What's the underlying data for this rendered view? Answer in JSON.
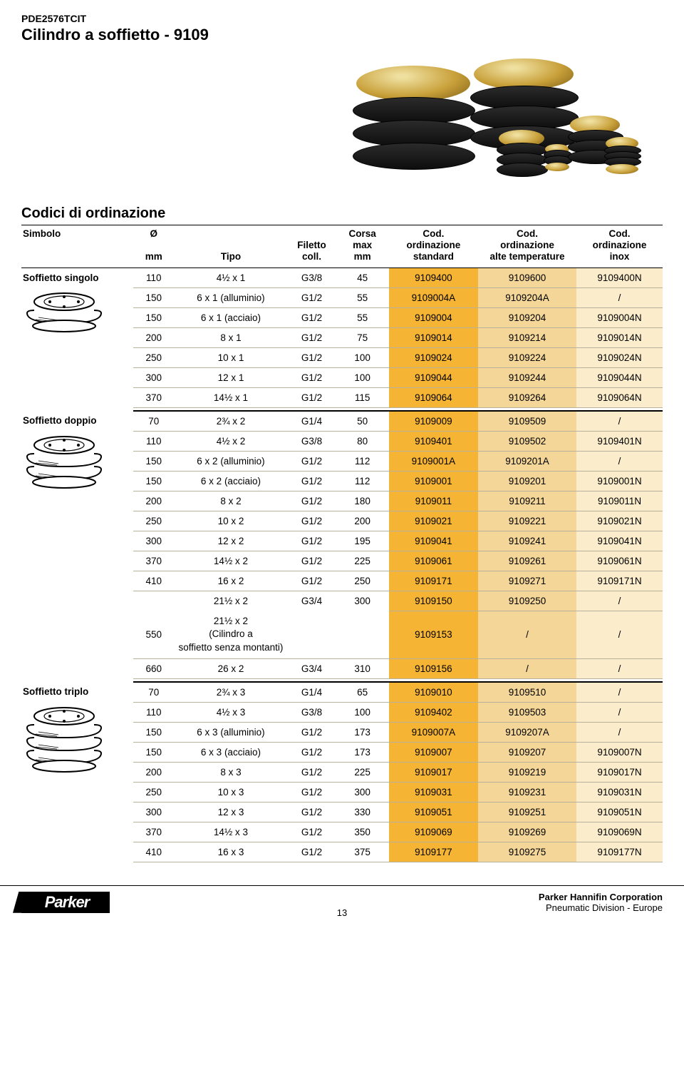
{
  "meta": {
    "doc_code": "PDE2576TCIT",
    "doc_title": "Cilindro a soffietto - 9109",
    "section_title": "Codici di ordinazione",
    "page_number": "13"
  },
  "headers": {
    "simbolo": "Simbolo",
    "diametro": "Ø",
    "diametro_unit": "mm",
    "tipo": "Tipo",
    "filetto": "Filetto",
    "filetto_sub": "coll.",
    "corsa": "Corsa",
    "corsa_sub": "max",
    "corsa_unit": "mm",
    "cod1": "Cod.",
    "cod1_sub": "ordinazione",
    "cod1_sub2": "standard",
    "cod2": "Cod.",
    "cod2_sub": "ordinazione",
    "cod2_sub2": "alte temperature",
    "cod3": "Cod.",
    "cod3_sub": "ordinazione",
    "cod3_sub2": "inox"
  },
  "groups": [
    {
      "name": "Soffietto singolo",
      "rows": [
        {
          "dia": "110",
          "tipo": "4½ x 1",
          "fil": "G3/8",
          "corsa": "45",
          "c1": "9109400",
          "c2": "9109600",
          "c3": "9109400N"
        },
        {
          "dia": "150",
          "tipo": "6 x 1 (alluminio)",
          "fil": "G1/2",
          "corsa": "55",
          "c1": "9109004A",
          "c2": "9109204A",
          "c3": "/"
        },
        {
          "dia": "150",
          "tipo": "6 x 1 (acciaio)",
          "fil": "G1/2",
          "corsa": "55",
          "c1": "9109004",
          "c2": "9109204",
          "c3": "9109004N"
        },
        {
          "dia": "200",
          "tipo": "8 x 1",
          "fil": "G1/2",
          "corsa": "75",
          "c1": "9109014",
          "c2": "9109214",
          "c3": "9109014N"
        },
        {
          "dia": "250",
          "tipo": "10 x 1",
          "fil": "G1/2",
          "corsa": "100",
          "c1": "9109024",
          "c2": "9109224",
          "c3": "9109024N"
        },
        {
          "dia": "300",
          "tipo": "12 x 1",
          "fil": "G1/2",
          "corsa": "100",
          "c1": "9109044",
          "c2": "9109244",
          "c3": "9109044N"
        },
        {
          "dia": "370",
          "tipo": "14½ x 1",
          "fil": "G1/2",
          "corsa": "115",
          "c1": "9109064",
          "c2": "9109264",
          "c3": "9109064N"
        }
      ]
    },
    {
      "name": "Soffietto doppio",
      "rows": [
        {
          "dia": "70",
          "tipo": "2¾ x 2",
          "fil": "G1/4",
          "corsa": "50",
          "c1": "9109009",
          "c2": "9109509",
          "c3": "/"
        },
        {
          "dia": "110",
          "tipo": "4½ x 2",
          "fil": "G3/8",
          "corsa": "80",
          "c1": "9109401",
          "c2": "9109502",
          "c3": "9109401N"
        },
        {
          "dia": "150",
          "tipo": "6 x 2 (alluminio)",
          "fil": "G1/2",
          "corsa": "112",
          "c1": "9109001A",
          "c2": "9109201A",
          "c3": "/"
        },
        {
          "dia": "150",
          "tipo": "6 x 2 (acciaio)",
          "fil": "G1/2",
          "corsa": "112",
          "c1": "9109001",
          "c2": "9109201",
          "c3": "9109001N"
        },
        {
          "dia": "200",
          "tipo": "8 x 2",
          "fil": "G1/2",
          "corsa": "180",
          "c1": "9109011",
          "c2": "9109211",
          "c3": "9109011N"
        },
        {
          "dia": "250",
          "tipo": "10 x 2",
          "fil": "G1/2",
          "corsa": "200",
          "c1": "9109021",
          "c2": "9109221",
          "c3": "9109021N"
        },
        {
          "dia": "300",
          "tipo": "12 x 2",
          "fil": "G1/2",
          "corsa": "195",
          "c1": "9109041",
          "c2": "9109241",
          "c3": "9109041N"
        },
        {
          "dia": "370",
          "tipo": "14½ x 2",
          "fil": "G1/2",
          "corsa": "225",
          "c1": "9109061",
          "c2": "9109261",
          "c3": "9109061N"
        },
        {
          "dia": "410",
          "tipo": "16 x 2",
          "fil": "G1/2",
          "corsa": "250",
          "c1": "9109171",
          "c2": "9109271",
          "c3": "9109171N"
        },
        {
          "dia": "",
          "tipo": "21½ x 2",
          "fil": "G3/4",
          "corsa": "300",
          "c1": "9109150",
          "c2": "9109250",
          "c3": "/",
          "tall": true
        },
        {
          "dia": "550",
          "tipo": "21½ x 2\n(Cilindro a\nsoffietto senza montanti)",
          "fil": "",
          "corsa": "",
          "c1": "9109153",
          "c2": "/",
          "c3": "/",
          "tall": true,
          "merge_up": true
        },
        {
          "dia": "660",
          "tipo": "26 x 2",
          "fil": "G3/4",
          "corsa": "310",
          "c1": "9109156",
          "c2": "/",
          "c3": "/"
        }
      ]
    },
    {
      "name": "Soffietto triplo",
      "rows": [
        {
          "dia": "70",
          "tipo": "2¾ x 3",
          "fil": "G1/4",
          "corsa": "65",
          "c1": "9109010",
          "c2": "9109510",
          "c3": "/"
        },
        {
          "dia": "110",
          "tipo": "4½ x 3",
          "fil": "G3/8",
          "corsa": "100",
          "c1": "9109402",
          "c2": "9109503",
          "c3": "/"
        },
        {
          "dia": "150",
          "tipo": "6 x 3 (alluminio)",
          "fil": "G1/2",
          "corsa": "173",
          "c1": "9109007A",
          "c2": "9109207A",
          "c3": "/"
        },
        {
          "dia": "150",
          "tipo": "6 x 3 (acciaio)",
          "fil": "G1/2",
          "corsa": "173",
          "c1": "9109007",
          "c2": "9109207",
          "c3": "9109007N"
        },
        {
          "dia": "200",
          "tipo": "8 x 3",
          "fil": "G1/2",
          "corsa": "225",
          "c1": "9109017",
          "c2": "9109219",
          "c3": "9109017N"
        },
        {
          "dia": "250",
          "tipo": "10 x 3",
          "fil": "G1/2",
          "corsa": "300",
          "c1": "9109031",
          "c2": "9109231",
          "c3": "9109031N"
        },
        {
          "dia": "300",
          "tipo": "12 x 3",
          "fil": "G1/2",
          "corsa": "330",
          "c1": "9109051",
          "c2": "9109251",
          "c3": "9109051N"
        },
        {
          "dia": "370",
          "tipo": "14½ x 3",
          "fil": "G1/2",
          "corsa": "350",
          "c1": "9109069",
          "c2": "9109269",
          "c3": "9109069N"
        },
        {
          "dia": "410",
          "tipo": "16 x 3",
          "fil": "G1/2",
          "corsa": "375",
          "c1": "9109177",
          "c2": "9109275",
          "c3": "9109177N"
        }
      ]
    }
  ],
  "footer": {
    "brand": "Parker",
    "line1": "Parker Hannifin Corporation",
    "line2": "Pneumatic Division - Europe"
  },
  "colors": {
    "code_standard_bg": "#f5b433",
    "code_temp_bg": "#f3d698",
    "code_inox_bg": "#fbedcb",
    "row_divider": "#b7b19d"
  }
}
